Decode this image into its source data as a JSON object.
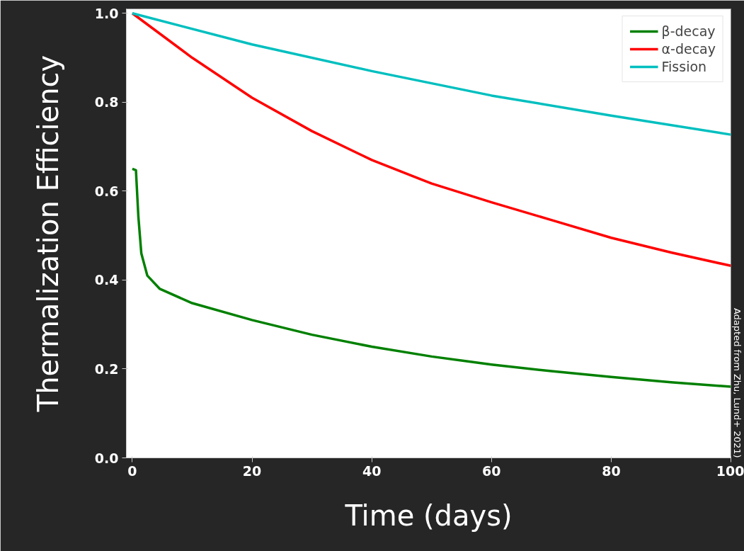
{
  "chart_data": {
    "type": "line",
    "xlabel": "Time (days)",
    "ylabel": "Thermalization Efficiency",
    "annotations": [
      "Adapted from Zhu, Lund+ 2021)"
    ],
    "xlim": [
      -1,
      100
    ],
    "ylim": [
      0,
      1.01
    ],
    "xticks": [
      0,
      20,
      40,
      60,
      80,
      100
    ],
    "yticks": [
      {
        "value": 0,
        "label": "0.0"
      },
      0.2,
      0.4,
      0.6,
      0.8,
      {
        "value": 1,
        "label": "1.0"
      }
    ],
    "grid": false,
    "legend": "top right",
    "series": [
      {
        "name": "β-decay",
        "color": "#008000",
        "x": [
          0,
          0.6,
          1.0,
          1.5,
          2.5,
          4.6,
          10,
          20,
          30,
          40,
          50,
          60,
          70,
          80,
          90,
          100
        ],
        "values": [
          0.65,
          0.647,
          0.544,
          0.46,
          0.41,
          0.38,
          0.348,
          0.31,
          0.277,
          0.25,
          0.228,
          0.21,
          0.195,
          0.182,
          0.17,
          0.16
        ]
      },
      {
        "name": "α-decay",
        "color": "#ff0000",
        "x": [
          0,
          10,
          20,
          30,
          40,
          50,
          60,
          70,
          80,
          90,
          100
        ],
        "values": [
          1.0,
          0.9,
          0.81,
          0.735,
          0.67,
          0.617,
          0.575,
          0.535,
          0.495,
          0.462,
          0.432
        ]
      },
      {
        "name": "Fission",
        "color": "#00bfbf",
        "x": [
          0,
          20,
          40,
          60,
          80,
          100
        ],
        "values": [
          1.0,
          0.93,
          0.87,
          0.815,
          0.77,
          0.727
        ]
      }
    ]
  }
}
